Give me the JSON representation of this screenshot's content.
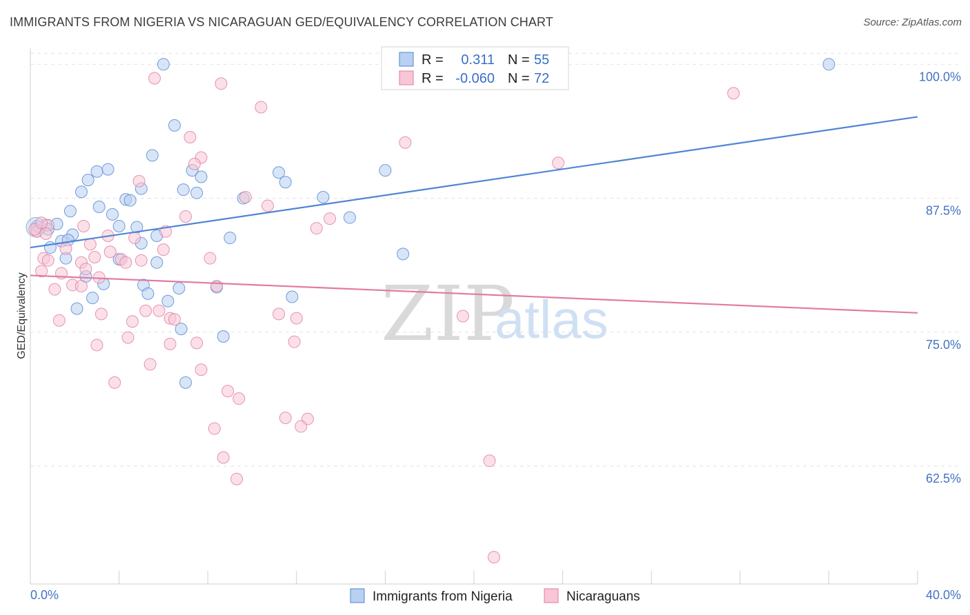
{
  "header": {
    "title": "IMMIGRANTS FROM NIGERIA VS NICARAGUAN GED/EQUIVALENCY CORRELATION CHART",
    "source": "Source: ZipAtlas.com"
  },
  "watermark": {
    "zip": "ZIP",
    "atlas": "atlas"
  },
  "legend_top": {
    "r_label": "R =",
    "n_label": "N =",
    "entries": [
      {
        "r": "0.311",
        "n": "55",
        "color": "#a9c6ee"
      },
      {
        "r": "-0.060",
        "n": "72",
        "color": "#f6b8cc"
      }
    ]
  },
  "chart_data": {
    "type": "scatter",
    "ylabel": "GED/Equivalency",
    "xlim": [
      0,
      40
    ],
    "ylim": [
      51.5,
      101.5
    ],
    "x_tick_labels": [
      "0.0%",
      "40.0%"
    ],
    "y_ticks": [
      {
        "value": 62.5,
        "label": "62.5%"
      },
      {
        "value": 75.0,
        "label": "75.0%"
      },
      {
        "value": 87.5,
        "label": "87.5%"
      },
      {
        "value": 100.0,
        "label": "100.0%"
      }
    ],
    "grid": "horizontal dashed",
    "series": [
      {
        "name": "Immigrants from Nigeria",
        "color": "#4f84d4",
        "fill": "#b8d0f1",
        "trend": {
          "x": [
            0,
            40
          ],
          "y": [
            82.9,
            95.1
          ]
        },
        "points": [
          [
            6.0,
            100.0
          ],
          [
            36.0,
            100.0
          ],
          [
            6.5,
            94.3
          ],
          [
            5.5,
            91.5
          ],
          [
            3.5,
            90.2
          ],
          [
            2.6,
            89.2
          ],
          [
            3.0,
            90.0
          ],
          [
            7.3,
            90.1
          ],
          [
            7.7,
            89.5
          ],
          [
            11.2,
            89.9
          ],
          [
            11.5,
            89.0
          ],
          [
            16.0,
            90.1
          ],
          [
            2.3,
            88.1
          ],
          [
            5.0,
            88.4
          ],
          [
            6.9,
            88.3
          ],
          [
            7.5,
            88.0
          ],
          [
            4.3,
            87.4
          ],
          [
            4.5,
            87.3
          ],
          [
            9.6,
            87.5
          ],
          [
            13.2,
            87.6
          ],
          [
            3.1,
            86.7
          ],
          [
            3.7,
            86.0
          ],
          [
            1.8,
            86.3
          ],
          [
            14.4,
            85.7
          ],
          [
            1.2,
            85.1
          ],
          [
            0.4,
            84.8
          ],
          [
            0.7,
            85.0
          ],
          [
            0.8,
            84.6
          ],
          [
            4.0,
            84.9
          ],
          [
            4.8,
            84.8
          ],
          [
            1.9,
            84.1
          ],
          [
            5.7,
            84.0
          ],
          [
            1.4,
            83.5
          ],
          [
            1.7,
            83.6
          ],
          [
            5.0,
            83.3
          ],
          [
            9.0,
            83.8
          ],
          [
            0.9,
            82.9
          ],
          [
            16.8,
            82.3
          ],
          [
            1.6,
            81.9
          ],
          [
            4.0,
            81.8
          ],
          [
            5.7,
            81.5
          ],
          [
            2.5,
            80.2
          ],
          [
            3.3,
            79.5
          ],
          [
            5.1,
            79.4
          ],
          [
            6.7,
            79.1
          ],
          [
            8.4,
            79.2
          ],
          [
            5.3,
            78.6
          ],
          [
            2.8,
            78.2
          ],
          [
            6.2,
            77.9
          ],
          [
            11.8,
            78.3
          ],
          [
            2.1,
            77.2
          ],
          [
            6.8,
            75.3
          ],
          [
            8.7,
            74.6
          ],
          [
            7.0,
            70.3
          ],
          [
            0.3,
            84.9
          ]
        ]
      },
      {
        "name": "Nicaraguans",
        "color": "#e07ba0",
        "fill": "#f8c6d6",
        "trend": {
          "x": [
            0,
            40
          ],
          "y": [
            80.3,
            76.8
          ]
        },
        "points": [
          [
            5.6,
            98.7
          ],
          [
            8.6,
            98.2
          ],
          [
            31.7,
            97.3
          ],
          [
            10.4,
            96.0
          ],
          [
            7.2,
            93.2
          ],
          [
            16.9,
            92.7
          ],
          [
            7.7,
            91.3
          ],
          [
            7.4,
            90.7
          ],
          [
            23.8,
            90.8
          ],
          [
            4.9,
            89.1
          ],
          [
            9.7,
            87.6
          ],
          [
            10.7,
            86.8
          ],
          [
            7.0,
            85.8
          ],
          [
            13.5,
            85.6
          ],
          [
            12.9,
            84.7
          ],
          [
            2.4,
            84.9
          ],
          [
            6.1,
            84.4
          ],
          [
            3.5,
            84.0
          ],
          [
            4.7,
            83.8
          ],
          [
            0.3,
            84.4
          ],
          [
            0.8,
            85.0
          ],
          [
            2.7,
            83.2
          ],
          [
            6.0,
            82.7
          ],
          [
            1.6,
            82.8
          ],
          [
            3.6,
            82.5
          ],
          [
            8.1,
            81.9
          ],
          [
            0.6,
            81.9
          ],
          [
            2.9,
            82.0
          ],
          [
            4.1,
            81.8
          ],
          [
            5.0,
            81.7
          ],
          [
            0.8,
            81.7
          ],
          [
            2.3,
            81.5
          ],
          [
            4.3,
            81.5
          ],
          [
            0.5,
            80.7
          ],
          [
            1.4,
            80.5
          ],
          [
            2.5,
            80.9
          ],
          [
            3.1,
            80.1
          ],
          [
            1.9,
            79.4
          ],
          [
            2.3,
            79.3
          ],
          [
            8.4,
            79.3
          ],
          [
            1.1,
            79.0
          ],
          [
            5.2,
            77.0
          ],
          [
            5.8,
            77.0
          ],
          [
            11.2,
            76.7
          ],
          [
            3.2,
            76.7
          ],
          [
            12.0,
            76.3
          ],
          [
            19.5,
            76.5
          ],
          [
            6.3,
            76.3
          ],
          [
            6.5,
            76.2
          ],
          [
            1.3,
            76.1
          ],
          [
            4.6,
            76.0
          ],
          [
            4.4,
            74.5
          ],
          [
            7.5,
            74.0
          ],
          [
            11.9,
            74.1
          ],
          [
            3.0,
            73.8
          ],
          [
            6.3,
            73.9
          ],
          [
            5.4,
            72.0
          ],
          [
            7.7,
            71.5
          ],
          [
            3.8,
            70.3
          ],
          [
            8.9,
            69.5
          ],
          [
            9.4,
            68.8
          ],
          [
            11.5,
            67.0
          ],
          [
            12.5,
            66.9
          ],
          [
            12.2,
            66.2
          ],
          [
            8.3,
            66.0
          ],
          [
            8.7,
            63.3
          ],
          [
            20.7,
            63.0
          ],
          [
            9.3,
            61.3
          ],
          [
            20.9,
            54.0
          ],
          [
            0.2,
            84.6
          ],
          [
            0.5,
            85.2
          ],
          [
            0.7,
            84.2
          ]
        ]
      }
    ]
  }
}
